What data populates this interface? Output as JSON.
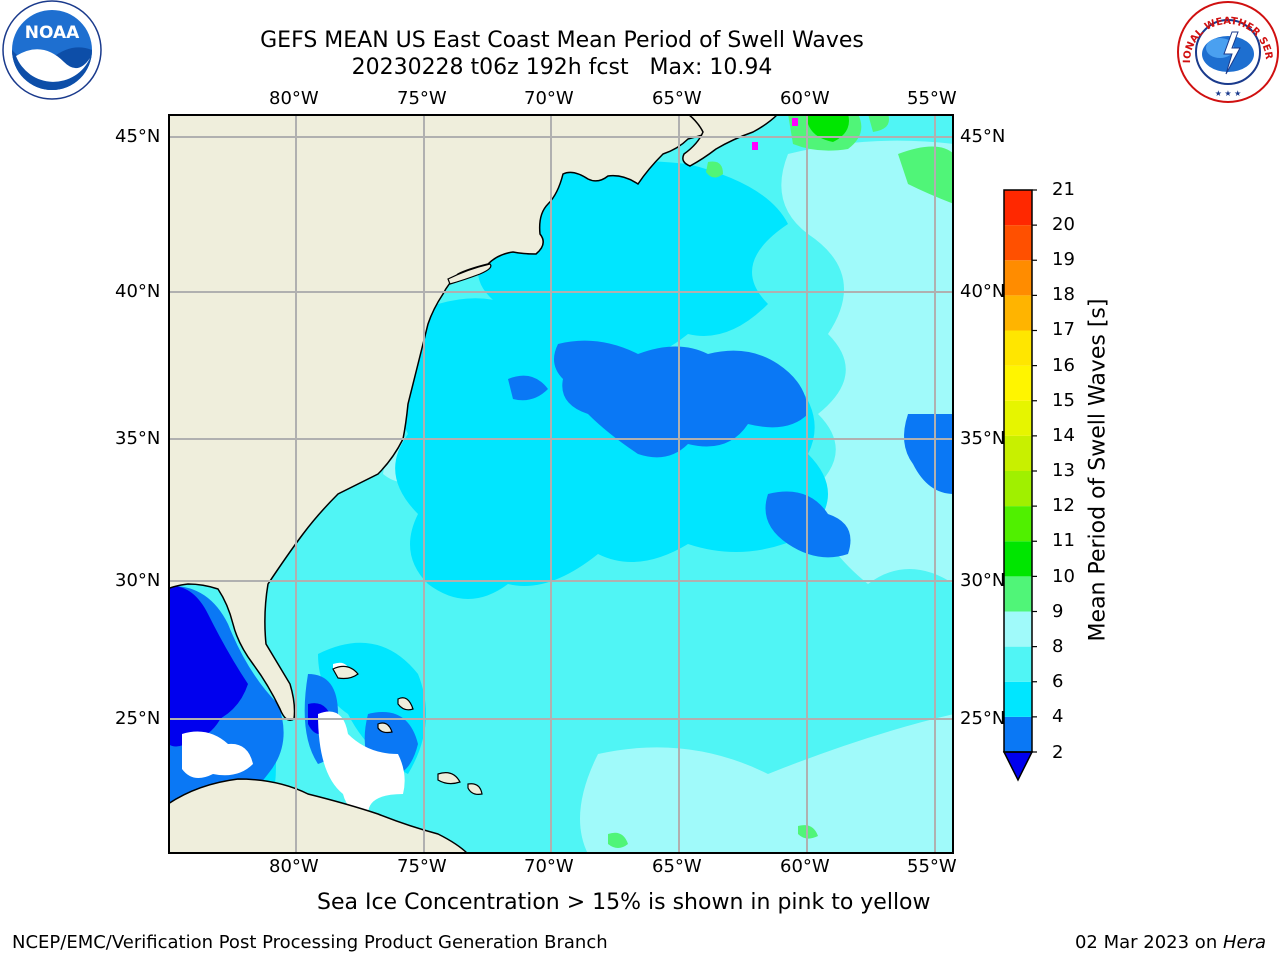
{
  "title_line1": "GEFS MEAN US East Coast Mean Period of Swell Waves",
  "title_line2": "20230228 t06z 192h fcst   Max: 10.94",
  "lon_labels": [
    "80°W",
    "75°W",
    "70°W",
    "65°W",
    "60°W",
    "55°W"
  ],
  "lat_labels": [
    "45°N",
    "40°N",
    "35°N",
    "30°N",
    "25°N"
  ],
  "colorbar": {
    "label": "Mean Period of Swell Waves [s]",
    "ticks": [
      "2",
      "4",
      "6",
      "8",
      "9",
      "10",
      "11",
      "12",
      "13",
      "14",
      "15",
      "16",
      "17",
      "18",
      "19",
      "20",
      "21"
    ],
    "colors": [
      "#0a78f5",
      "#00e6ff",
      "#50f5f5",
      "#a0fafa",
      "#50f578",
      "#00e600",
      "#50f000",
      "#a0f000",
      "#c8f000",
      "#e6f500",
      "#fff500",
      "#ffe600",
      "#ffb400",
      "#ff8c00",
      "#ff5000",
      "#ff2800",
      "#ff0000"
    ],
    "under_color": "#0000ee"
  },
  "caption": "Sea Ice Concentration > 15% is shown in pink to yellow",
  "footer_left": "NCEP/EMC/Verification Post Processing Product Generation Branch",
  "footer_date": "02 Mar 2023 on ",
  "footer_machine": "Hera",
  "logos": {
    "noaa_text": "NOAA",
    "nws_text": "NATIONAL WEATHER SERVICE"
  },
  "colors": {
    "land": "#efeedc",
    "ocean_dominant": "#50f5f5",
    "ocean_mid": "#00e6ff",
    "ocean_dark": "#0a78f5",
    "ocean_under": "#0000ee",
    "ocean_light": "#a0fafa",
    "ocean_green": "#50f578",
    "gridline": "#b0b0b0"
  }
}
